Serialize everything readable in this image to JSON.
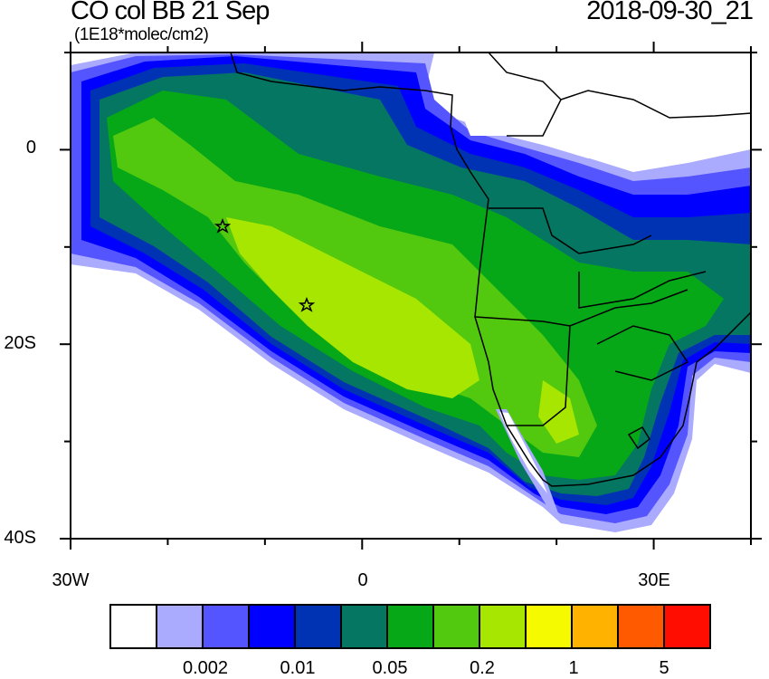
{
  "header": {
    "title": "CO col BB 21 Sep",
    "units": "(1E18*molec/cm2)",
    "timestamp": "2018-09-30_21"
  },
  "axes": {
    "y_labels": [
      "0",
      "20S",
      "40S"
    ],
    "x_labels": [
      "30W",
      "0",
      "30E"
    ],
    "lon_range": [
      -30,
      40
    ],
    "lat_range": [
      -40,
      10
    ]
  },
  "colorbar": {
    "colors": [
      "#ffffff",
      "#aaaaff",
      "#5555ff",
      "#0000ff",
      "#0033b3",
      "#057662",
      "#06a818",
      "#52c80e",
      "#a6e600",
      "#f5fa00",
      "#ffb300",
      "#ff5a00",
      "#ff0d00"
    ],
    "labels": [
      "0.002",
      "0.01",
      "0.05",
      "0.2",
      "1",
      "5"
    ]
  },
  "markers": [
    {
      "lon": -14.5,
      "lat": -8,
      "symbol": "star"
    },
    {
      "lon": -5.8,
      "lat": -16,
      "symbol": "star"
    }
  ]
}
